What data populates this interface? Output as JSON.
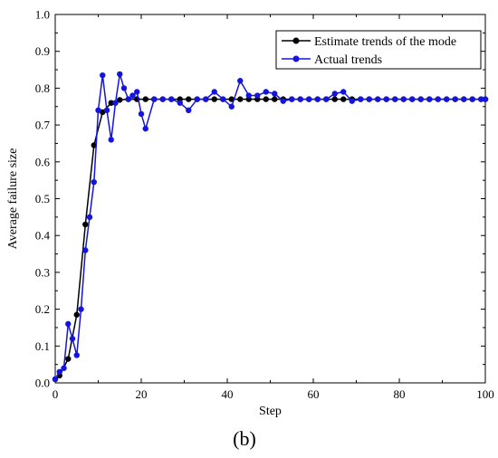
{
  "panel_label": "(b)",
  "colors": {
    "estimate": "#000000",
    "actual": "#1414e0",
    "frame": "#000000"
  },
  "chart_data": {
    "type": "line",
    "title": "",
    "xlabel": "Step",
    "ylabel": "Average failure size",
    "xlim": [
      0,
      100
    ],
    "ylim": [
      0,
      1.0
    ],
    "xticks": [
      0,
      20,
      40,
      60,
      80,
      100
    ],
    "xtick_labels": [
      "0",
      "20",
      "40",
      "60",
      "80",
      "100"
    ],
    "yticks": [
      0,
      0.1,
      0.2,
      0.3,
      0.4,
      0.5,
      0.6,
      0.7,
      0.8,
      0.9,
      1.0
    ],
    "ytick_labels": [
      "0.0",
      "0.1",
      "0.2",
      "0.3",
      "0.4",
      "0.5",
      "0.6",
      "0.7",
      "0.8",
      "0.9",
      "1.0"
    ],
    "grid": false,
    "legend_position": "top-right",
    "series": [
      {
        "name": "Estimate trends of the mode",
        "color": "#000000",
        "marker": "circle",
        "x": [
          0,
          1,
          3,
          5,
          7,
          9,
          11,
          13,
          15,
          17,
          19,
          21,
          23,
          25,
          27,
          29,
          31,
          33,
          35,
          37,
          39,
          41,
          43,
          45,
          47,
          49,
          51,
          53,
          55,
          57,
          59,
          61,
          63,
          65,
          67,
          69,
          71,
          73,
          75,
          77,
          79,
          81,
          83,
          85,
          87,
          89,
          91,
          93,
          95,
          97,
          99,
          100
        ],
        "y": [
          0.01,
          0.02,
          0.065,
          0.185,
          0.43,
          0.645,
          0.735,
          0.76,
          0.768,
          0.77,
          0.77,
          0.77,
          0.77,
          0.77,
          0.77,
          0.77,
          0.77,
          0.77,
          0.77,
          0.77,
          0.77,
          0.77,
          0.77,
          0.77,
          0.77,
          0.77,
          0.77,
          0.77,
          0.77,
          0.77,
          0.77,
          0.77,
          0.77,
          0.77,
          0.77,
          0.77,
          0.77,
          0.77,
          0.77,
          0.77,
          0.77,
          0.77,
          0.77,
          0.77,
          0.77,
          0.77,
          0.77,
          0.77,
          0.77,
          0.77,
          0.77,
          0.77
        ]
      },
      {
        "name": "Actual trends",
        "color": "#1414e0",
        "marker": "circle",
        "x": [
          0,
          1,
          2,
          3,
          4,
          5,
          6,
          7,
          8,
          9,
          10,
          11,
          12,
          13,
          14,
          15,
          16,
          17,
          18,
          19,
          20,
          21,
          23,
          25,
          27,
          29,
          31,
          33,
          35,
          37,
          39,
          41,
          43,
          45,
          47,
          49,
          51,
          53,
          55,
          57,
          59,
          61,
          63,
          65,
          67,
          69,
          71,
          73,
          75,
          77,
          79,
          81,
          83,
          85,
          87,
          89,
          91,
          93,
          95,
          97,
          99,
          100
        ],
        "y": [
          0.01,
          0.03,
          0.04,
          0.16,
          0.12,
          0.075,
          0.2,
          0.36,
          0.45,
          0.545,
          0.74,
          0.835,
          0.74,
          0.66,
          0.76,
          0.838,
          0.8,
          0.77,
          0.78,
          0.79,
          0.73,
          0.69,
          0.77,
          0.77,
          0.77,
          0.76,
          0.74,
          0.77,
          0.77,
          0.79,
          0.77,
          0.75,
          0.82,
          0.78,
          0.78,
          0.79,
          0.785,
          0.765,
          0.77,
          0.77,
          0.77,
          0.77,
          0.77,
          0.785,
          0.79,
          0.765,
          0.77,
          0.77,
          0.77,
          0.77,
          0.77,
          0.77,
          0.77,
          0.77,
          0.77,
          0.77,
          0.77,
          0.77,
          0.77,
          0.77,
          0.77,
          0.77
        ]
      }
    ]
  }
}
